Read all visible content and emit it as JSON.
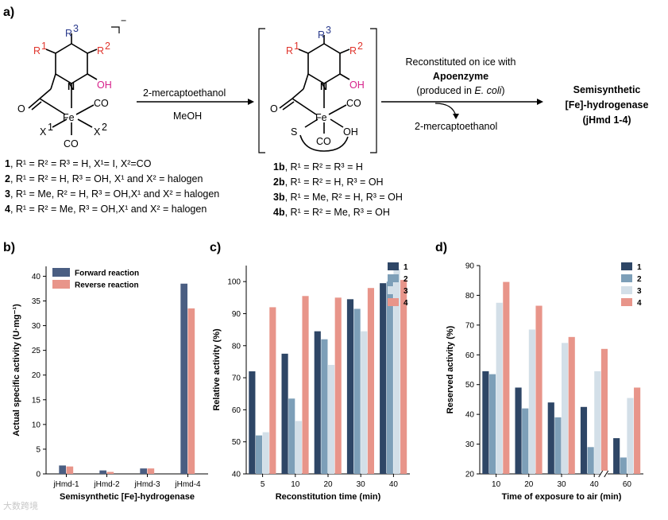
{
  "panel_labels": [
    "a)",
    "b)",
    "c)",
    "d)"
  ],
  "scheme": {
    "r3": "R",
    "r3_sup": "3",
    "r1": "R",
    "r1_sup": "1",
    "r2": "R",
    "r2_sup": "2",
    "oh": "OH",
    "n": "N",
    "fe": "Fe",
    "co": "CO",
    "x1": "X",
    "x1_sup": "1",
    "x2": "X",
    "x2_sup": "2",
    "o": "O",
    "s": "S",
    "charge": "−",
    "arrow1_top": "2-mercaptoethanol",
    "arrow1_bottom": "MeOH",
    "arrow2_line1": "Reconstituted on ice with",
    "arrow2_line2": "Apoenzyme",
    "arrow2_line3a": "(produced in ",
    "arrow2_line3b": "E. coli",
    "arrow2_line3c": ")",
    "arrow2_out": "2-mercaptoethanol",
    "product_line1": "Semisynthetic",
    "product_line2": "[Fe]-hydrogenase",
    "product_line3": "(jHmd 1-4)",
    "compounds_left": [
      {
        "num": "1",
        "text": ", R¹ = R² = R³ = H, X¹= I, X²=CO"
      },
      {
        "num": "2",
        "text": ", R¹ = R² = H, R³ = OH, X¹ and X² = halogen"
      },
      {
        "num": "3",
        "text": ", R¹ = Me, R² = H, R³ = OH,X¹ and X² = halogen"
      },
      {
        "num": "4",
        "text": ", R¹ = R² = Me, R³ = OH,X¹ and X² = halogen"
      }
    ],
    "compounds_mid": [
      {
        "num": "1b",
        "text": ", R¹ = R² = R³ = H"
      },
      {
        "num": "2b",
        "text": ", R¹ = R² = H, R³ = OH"
      },
      {
        "num": "3b",
        "text": ", R¹ = Me, R² = H, R³ = OH"
      },
      {
        "num": "4b",
        "text": ", R¹ = R² = Me, R³ = OH"
      }
    ]
  },
  "watermark": "大数跨境",
  "chart_data": [
    {
      "id": "b",
      "type": "bar",
      "categories": [
        "jHmd-1",
        "jHmd-2",
        "jHmd-3",
        "jHmd-4"
      ],
      "series": [
        {
          "name": "Forward reaction",
          "color": "#4a5e82",
          "values": [
            1.7,
            0.7,
            1.1,
            38.5
          ]
        },
        {
          "name": "Reverse reaction",
          "color": "#e8958a",
          "values": [
            1.5,
            0.4,
            1.1,
            33.5
          ]
        }
      ],
      "xlabel": "Semisynthetic [Fe]-hydrogenase",
      "ylabel": "Actual specific activity (U·mg⁻¹)",
      "ylim": [
        0,
        42
      ],
      "yticks": [
        0,
        5,
        10,
        15,
        20,
        25,
        30,
        35,
        40
      ],
      "legend": "top-left"
    },
    {
      "id": "c",
      "type": "bar",
      "categories": [
        "5",
        "10",
        "20",
        "30",
        "40"
      ],
      "series": [
        {
          "name": "1",
          "color": "#2e4666",
          "values": [
            72,
            77.5,
            84.5,
            94.5,
            99.5
          ]
        },
        {
          "name": "2",
          "color": "#7d9fb8",
          "values": [
            52,
            63.5,
            82,
            91.5,
            100
          ]
        },
        {
          "name": "3",
          "color": "#d3dfe8",
          "values": [
            53,
            56.5,
            74,
            84.5,
            104
          ]
        },
        {
          "name": "4",
          "color": "#e8958a",
          "values": [
            92,
            95.5,
            95,
            98,
            100.5
          ]
        }
      ],
      "xlabel": "Reconstitution time (min)",
      "ylabel": "Relative activity (%)",
      "ylim": [
        40,
        105
      ],
      "yticks": [
        40,
        50,
        60,
        70,
        80,
        90,
        100
      ],
      "legend": "top-right"
    },
    {
      "id": "d",
      "type": "bar",
      "categories": [
        "10",
        "20",
        "30",
        "40",
        "60"
      ],
      "series": [
        {
          "name": "1",
          "color": "#2e4666",
          "values": [
            54.5,
            49,
            44,
            42.5,
            32
          ]
        },
        {
          "name": "2",
          "color": "#7d9fb8",
          "values": [
            53.5,
            42,
            39,
            29,
            25.5
          ]
        },
        {
          "name": "3",
          "color": "#d3dfe8",
          "values": [
            77.5,
            68.5,
            64,
            54.5,
            45.5
          ]
        },
        {
          "name": "4",
          "color": "#e8958a",
          "values": [
            84.5,
            76.5,
            66,
            62,
            49
          ]
        }
      ],
      "xlabel": "Time of exposure to air (min)",
      "ylabel": "Reserved activity (%)",
      "ylim": [
        20,
        90
      ],
      "yticks": [
        20,
        30,
        40,
        50,
        60,
        70,
        80,
        90
      ],
      "legend": "top-right",
      "axis_break": "between 40 and 60"
    }
  ]
}
